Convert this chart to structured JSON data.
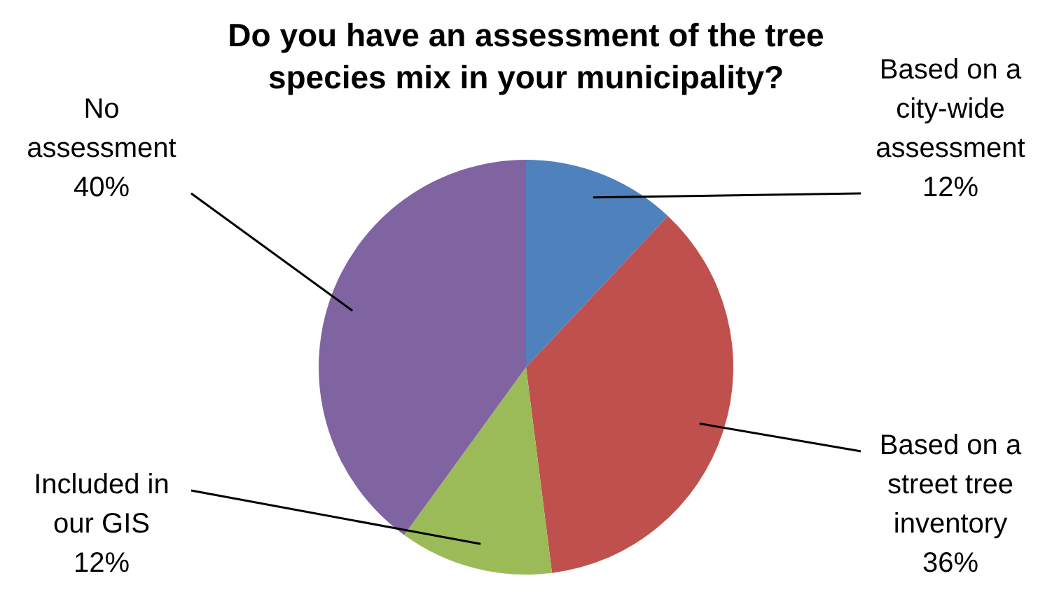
{
  "chart_data": {
    "type": "pie",
    "title": "Do you have an assessment of the tree species mix in your municipality?",
    "categories": [
      "Based on a city-wide assessment",
      "Based on a street tree inventory",
      "Included in our GIS",
      "No assessment"
    ],
    "values": [
      12,
      36,
      12,
      40
    ],
    "colors": [
      "#4f81bd",
      "#c0504d",
      "#9bbb59",
      "#8064a2"
    ],
    "value_labels": [
      "12%",
      "36%",
      "12%",
      "40%"
    ]
  }
}
